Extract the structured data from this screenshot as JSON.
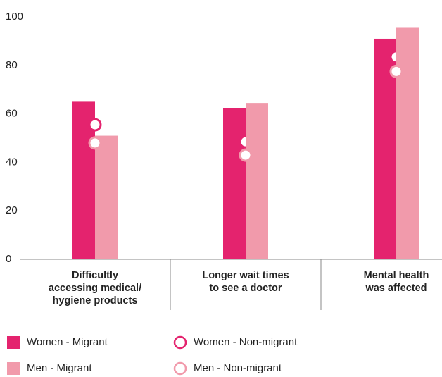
{
  "chart_data": {
    "type": "bar",
    "categories": [
      [
        "Difficultly",
        "accessing medical/",
        "hygiene products"
      ],
      [
        "Longer wait times",
        "to see a doctor"
      ],
      [
        "Mental health",
        "was affected"
      ]
    ],
    "series": [
      {
        "name": "Women - Migrant",
        "type": "bar",
        "color": "#e4236e",
        "values": [
          65,
          62.5,
          91
        ]
      },
      {
        "name": "Women - Non-migrant",
        "type": "scatter",
        "color": "#e4236e",
        "values": [
          55.5,
          48.5,
          83.5
        ]
      },
      {
        "name": "Men - Migrant",
        "type": "bar",
        "color": "#f19aab",
        "values": [
          51,
          64.5,
          95.5
        ]
      },
      {
        "name": "Men - Non-migrant",
        "type": "scatter",
        "color": "#f19aab",
        "values": [
          48,
          43,
          77.5
        ]
      }
    ],
    "ylim": [
      0,
      100
    ],
    "yticks": [
      0,
      20,
      40,
      60,
      80,
      100
    ],
    "grid": false
  }
}
